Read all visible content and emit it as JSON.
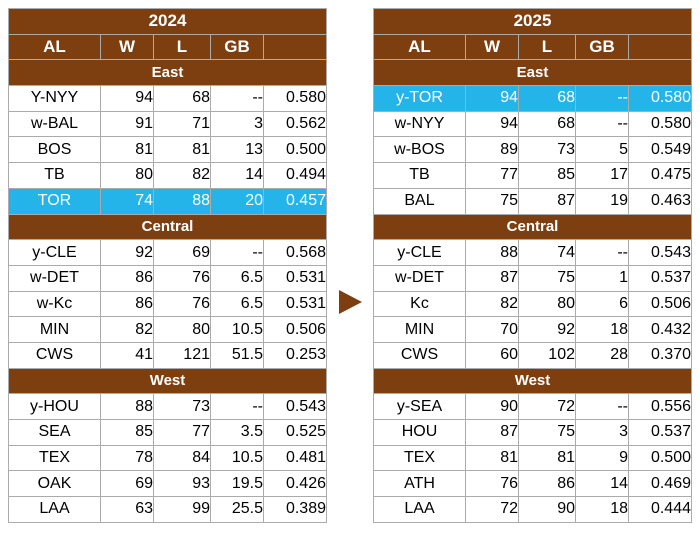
{
  "colors": {
    "header_brown": "#7d3f10",
    "highlight_cyan": "#24b4e9",
    "header_text": "#ffffff",
    "cell_text": "#000000",
    "grid_line": "#ababab",
    "background": "#ffffff"
  },
  "arrow": {
    "icon": "right-triangle",
    "color": "#7d3f10"
  },
  "chart_data": [
    {
      "type": "table",
      "title": "2024",
      "columns": [
        "AL",
        "W",
        "L",
        "GB",
        ""
      ],
      "sections": [
        {
          "name": "East",
          "rows": [
            {
              "team": "Y-NYY",
              "w": "94",
              "l": "68",
              "gb": "--",
              "pct": "0.580",
              "highlight": false
            },
            {
              "team": "w-BAL",
              "w": "91",
              "l": "71",
              "gb": "3",
              "pct": "0.562",
              "highlight": false
            },
            {
              "team": "BOS",
              "w": "81",
              "l": "81",
              "gb": "13",
              "pct": "0.500",
              "highlight": false
            },
            {
              "team": "TB",
              "w": "80",
              "l": "82",
              "gb": "14",
              "pct": "0.494",
              "highlight": false
            },
            {
              "team": "TOR",
              "w": "74",
              "l": "88",
              "gb": "20",
              "pct": "0.457",
              "highlight": true
            }
          ]
        },
        {
          "name": "Central",
          "rows": [
            {
              "team": "y-CLE",
              "w": "92",
              "l": "69",
              "gb": "--",
              "pct": "0.568",
              "highlight": false
            },
            {
              "team": "w-DET",
              "w": "86",
              "l": "76",
              "gb": "6.5",
              "pct": "0.531",
              "highlight": false
            },
            {
              "team": "w-Kc",
              "w": "86",
              "l": "76",
              "gb": "6.5",
              "pct": "0.531",
              "highlight": false
            },
            {
              "team": "MIN",
              "w": "82",
              "l": "80",
              "gb": "10.5",
              "pct": "0.506",
              "highlight": false
            },
            {
              "team": "CWS",
              "w": "41",
              "l": "121",
              "gb": "51.5",
              "pct": "0.253",
              "highlight": false
            }
          ]
        },
        {
          "name": "West",
          "rows": [
            {
              "team": "y-HOU",
              "w": "88",
              "l": "73",
              "gb": "--",
              "pct": "0.543",
              "highlight": false
            },
            {
              "team": "SEA",
              "w": "85",
              "l": "77",
              "gb": "3.5",
              "pct": "0.525",
              "highlight": false
            },
            {
              "team": "TEX",
              "w": "78",
              "l": "84",
              "gb": "10.5",
              "pct": "0.481",
              "highlight": false
            },
            {
              "team": "OAK",
              "w": "69",
              "l": "93",
              "gb": "19.5",
              "pct": "0.426",
              "highlight": false
            },
            {
              "team": "LAA",
              "w": "63",
              "l": "99",
              "gb": "25.5",
              "pct": "0.389",
              "highlight": false
            }
          ]
        }
      ]
    },
    {
      "type": "table",
      "title": "2025",
      "columns": [
        "AL",
        "W",
        "L",
        "GB",
        ""
      ],
      "sections": [
        {
          "name": "East",
          "rows": [
            {
              "team": "y-TOR",
              "w": "94",
              "l": "68",
              "gb": "--",
              "pct": "0.580",
              "highlight": true
            },
            {
              "team": "w-NYY",
              "w": "94",
              "l": "68",
              "gb": "--",
              "pct": "0.580",
              "highlight": false
            },
            {
              "team": "w-BOS",
              "w": "89",
              "l": "73",
              "gb": "5",
              "pct": "0.549",
              "highlight": false
            },
            {
              "team": "TB",
              "w": "77",
              "l": "85",
              "gb": "17",
              "pct": "0.475",
              "highlight": false
            },
            {
              "team": "BAL",
              "w": "75",
              "l": "87",
              "gb": "19",
              "pct": "0.463",
              "highlight": false
            }
          ]
        },
        {
          "name": "Central",
          "rows": [
            {
              "team": "y-CLE",
              "w": "88",
              "l": "74",
              "gb": "--",
              "pct": "0.543",
              "highlight": false
            },
            {
              "team": "w-DET",
              "w": "87",
              "l": "75",
              "gb": "1",
              "pct": "0.537",
              "highlight": false
            },
            {
              "team": "Kc",
              "w": "82",
              "l": "80",
              "gb": "6",
              "pct": "0.506",
              "highlight": false
            },
            {
              "team": "MIN",
              "w": "70",
              "l": "92",
              "gb": "18",
              "pct": "0.432",
              "highlight": false
            },
            {
              "team": "CWS",
              "w": "60",
              "l": "102",
              "gb": "28",
              "pct": "0.370",
              "highlight": false
            }
          ]
        },
        {
          "name": "West",
          "rows": [
            {
              "team": "y-SEA",
              "w": "90",
              "l": "72",
              "gb": "--",
              "pct": "0.556",
              "highlight": false
            },
            {
              "team": "HOU",
              "w": "87",
              "l": "75",
              "gb": "3",
              "pct": "0.537",
              "highlight": false
            },
            {
              "team": "TEX",
              "w": "81",
              "l": "81",
              "gb": "9",
              "pct": "0.500",
              "highlight": false
            },
            {
              "team": "ATH",
              "w": "76",
              "l": "86",
              "gb": "14",
              "pct": "0.469",
              "highlight": false
            },
            {
              "team": "LAA",
              "w": "72",
              "l": "90",
              "gb": "18",
              "pct": "0.444",
              "highlight": false
            }
          ]
        }
      ]
    }
  ]
}
